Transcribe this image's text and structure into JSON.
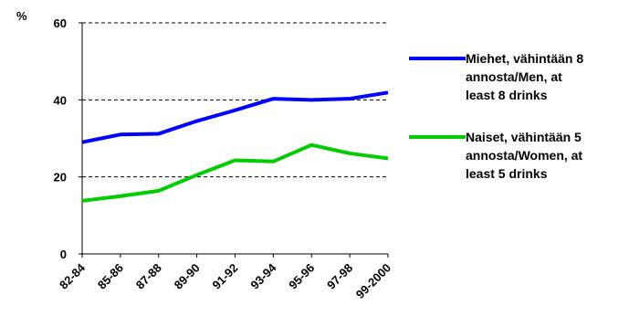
{
  "chart_data": {
    "type": "line",
    "ylabel": "%",
    "ylim": [
      0,
      60
    ],
    "yticks": [
      0,
      20,
      40,
      60
    ],
    "grid": "dashed horizontal at 20, 40 and 60",
    "legend_position": "right",
    "categories": [
      "82-84",
      "85-86",
      "87-88",
      "89-90",
      "91-92",
      "93-94",
      "95-96",
      "97-98",
      "99-2000"
    ],
    "series": [
      {
        "name": "Miehet, vähintään 8 annosta/Men, at least 8 drinks",
        "legend_lines": [
          "Miehet, vähintään 8",
          "annosta/Men, at",
          "least 8 drinks"
        ],
        "color": "#0000ff",
        "values": [
          29,
          31,
          31.2,
          34.5,
          37.3,
          40.3,
          40,
          40.3,
          41.9
        ]
      },
      {
        "name": "Naiset, vähintään 5 annosta/Women, at least 5 drinks",
        "legend_lines": [
          "Naiset, vähintään 5",
          "annosta/Women, at",
          "least 5 drinks"
        ],
        "color": "#00cc00",
        "values": [
          13.8,
          15,
          16.4,
          20.5,
          24.3,
          24,
          28.3,
          26.1,
          24.8
        ]
      }
    ]
  }
}
